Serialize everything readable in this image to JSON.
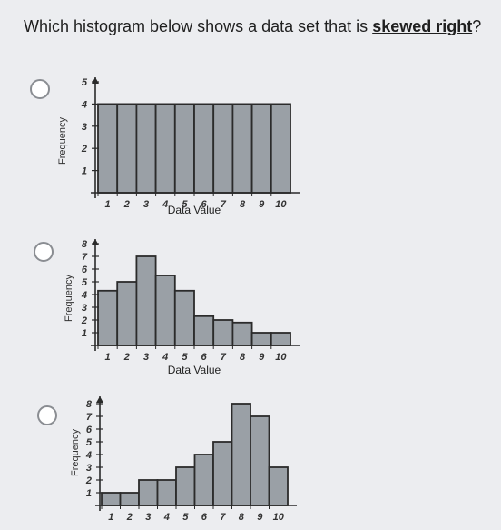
{
  "question": {
    "prefix": "Which histogram below shows a data set that is ",
    "emphasis": "skewed right",
    "suffix": "?"
  },
  "options": [
    {
      "id": "option-a",
      "chart_data": {
        "type": "bar",
        "categories": [
          "1",
          "2",
          "3",
          "4",
          "5",
          "6",
          "7",
          "8",
          "9",
          "10"
        ],
        "values": [
          4,
          4,
          4,
          4,
          4,
          4,
          4,
          4,
          4,
          4
        ],
        "ylim": [
          0,
          5
        ],
        "yticks": [
          "1",
          "2",
          "3",
          "4",
          "5"
        ],
        "xlabel": "Data Value",
        "ylabel": "Frequency"
      }
    },
    {
      "id": "option-b",
      "chart_data": {
        "type": "bar",
        "categories": [
          "1",
          "2",
          "3",
          "4",
          "5",
          "6",
          "7",
          "8",
          "9",
          "10"
        ],
        "values": [
          4.3,
          5,
          7,
          5.5,
          4.3,
          2.3,
          2,
          1.8,
          1,
          1
        ],
        "ylim": [
          0,
          8
        ],
        "yticks": [
          "1",
          "2",
          "3",
          "4",
          "5",
          "6",
          "7",
          "8"
        ],
        "xlabel": "Data Value",
        "ylabel": "Frequency"
      }
    },
    {
      "id": "option-c",
      "chart_data": {
        "type": "bar",
        "categories": [
          "1",
          "2",
          "3",
          "4",
          "5",
          "6",
          "7",
          "8",
          "9",
          "10"
        ],
        "values": [
          1,
          1,
          2,
          2,
          3,
          4,
          5,
          8,
          7,
          3
        ],
        "ylim": [
          0,
          8
        ],
        "yticks": [
          "1",
          "2",
          "3",
          "4",
          "5",
          "6",
          "7",
          "8"
        ],
        "xlabel": "",
        "ylabel": "Frequency"
      }
    }
  ]
}
